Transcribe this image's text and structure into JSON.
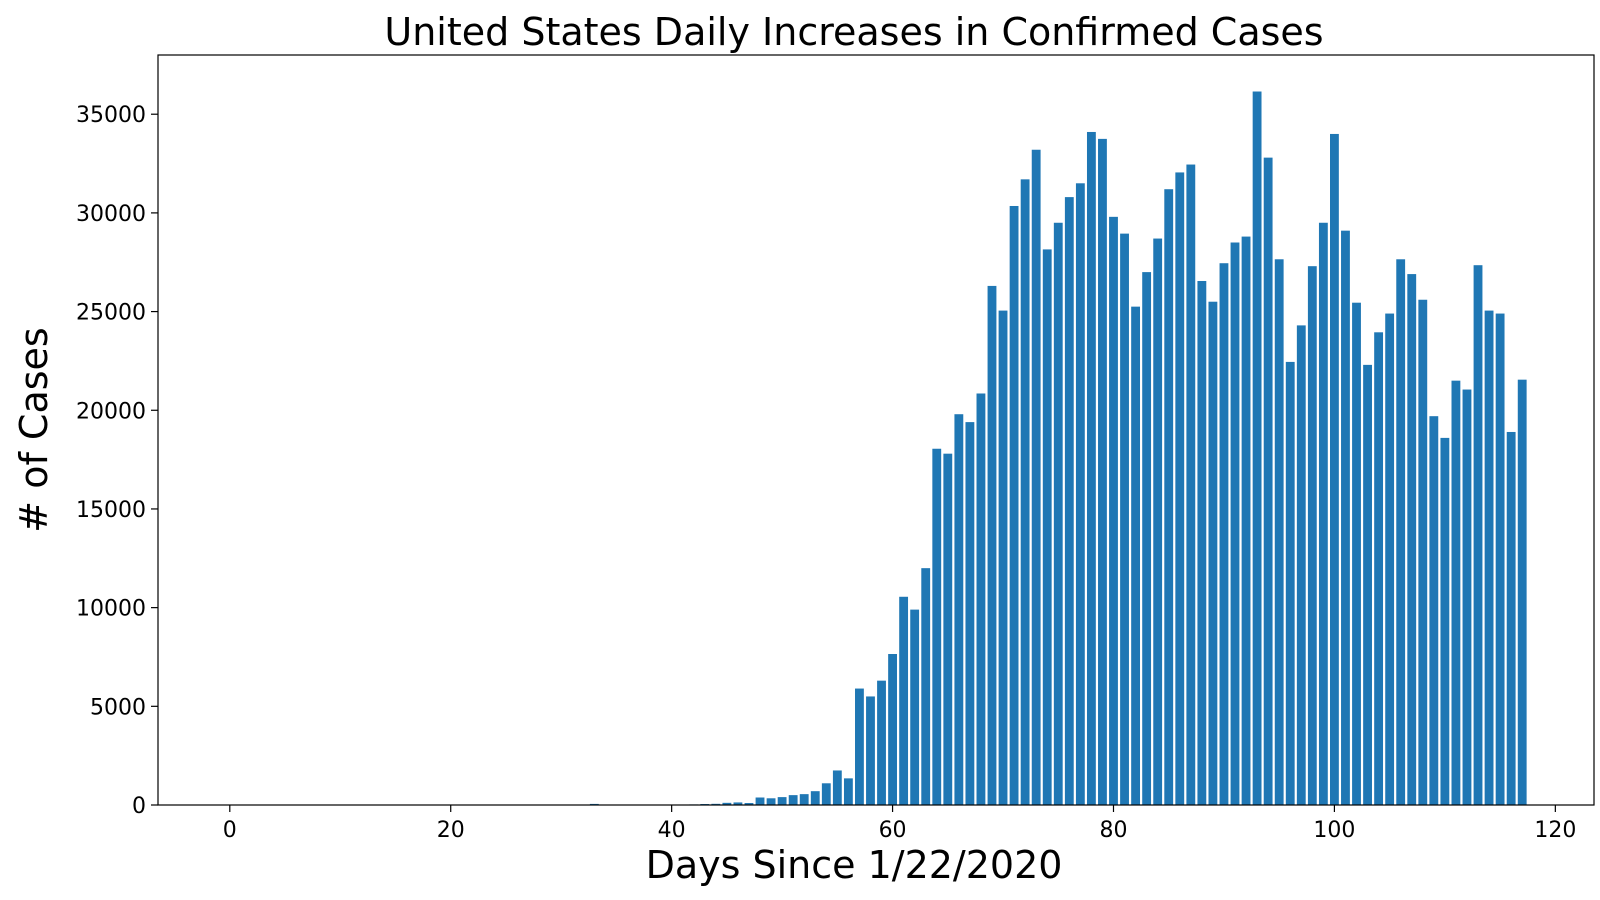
{
  "colors": {
    "bar": "#1f77b4"
  },
  "chart_data": {
    "type": "bar",
    "title": "United States Daily Increases in Confirmed Cases",
    "xlabel": "Days Since 1/22/2020",
    "ylabel": "# of Cases",
    "xlim": [
      -6.5,
      123.5
    ],
    "ylim": [
      0,
      38000
    ],
    "xticks": [
      0,
      20,
      40,
      60,
      80,
      100,
      120
    ],
    "yticks": [
      0,
      5000,
      10000,
      15000,
      20000,
      25000,
      30000,
      35000
    ],
    "grid": false,
    "legend": "none",
    "x": [
      0,
      1,
      2,
      3,
      4,
      5,
      6,
      7,
      8,
      9,
      10,
      11,
      12,
      13,
      14,
      15,
      16,
      17,
      18,
      19,
      20,
      21,
      22,
      23,
      24,
      25,
      26,
      27,
      28,
      29,
      30,
      31,
      32,
      33,
      34,
      35,
      36,
      37,
      38,
      39,
      40,
      41,
      42,
      43,
      44,
      45,
      46,
      47,
      48,
      49,
      50,
      51,
      52,
      53,
      54,
      55,
      56,
      57,
      58,
      59,
      60,
      61,
      62,
      63,
      64,
      65,
      66,
      67,
      68,
      69,
      70,
      71,
      72,
      73,
      74,
      75,
      76,
      77,
      78,
      79,
      80,
      81,
      82,
      83,
      84,
      85,
      86,
      87,
      88,
      89,
      90,
      91,
      92,
      93,
      94,
      95,
      96,
      97,
      98,
      99,
      100,
      101,
      102,
      103,
      104,
      105,
      106,
      107,
      108,
      109,
      110,
      111,
      112,
      113,
      114,
      115,
      116,
      117
    ],
    "values": [
      0,
      0,
      0,
      0,
      1,
      0,
      0,
      0,
      0,
      1,
      0,
      0,
      0,
      0,
      1,
      0,
      0,
      0,
      0,
      0,
      0,
      0,
      0,
      0,
      0,
      0,
      0,
      0,
      0,
      0,
      0,
      0,
      0,
      55,
      0,
      0,
      0,
      0,
      0,
      0,
      20,
      25,
      30,
      50,
      60,
      110,
      130,
      100,
      380,
      340,
      400,
      500,
      550,
      700,
      1100,
      1750,
      1350,
      5900,
      5500,
      6300,
      7650,
      10550,
      9900,
      12000,
      18050,
      17800,
      19800,
      19400,
      20850,
      26300,
      25050,
      30350,
      31700,
      33200,
      28150,
      29500,
      30800,
      31500,
      34100,
      33750,
      29800,
      28950,
      25250,
      27000,
      28700,
      31200,
      32050,
      32450,
      26550,
      25500,
      27450,
      28500,
      28800,
      36150,
      32800,
      27650,
      22450,
      24300,
      27300,
      29500,
      34000,
      29100,
      25450,
      22300,
      23950,
      24900,
      27650,
      26900,
      25600,
      19700,
      18600,
      21500,
      21050,
      27350,
      25050,
      24900,
      18900,
      21550
    ]
  }
}
